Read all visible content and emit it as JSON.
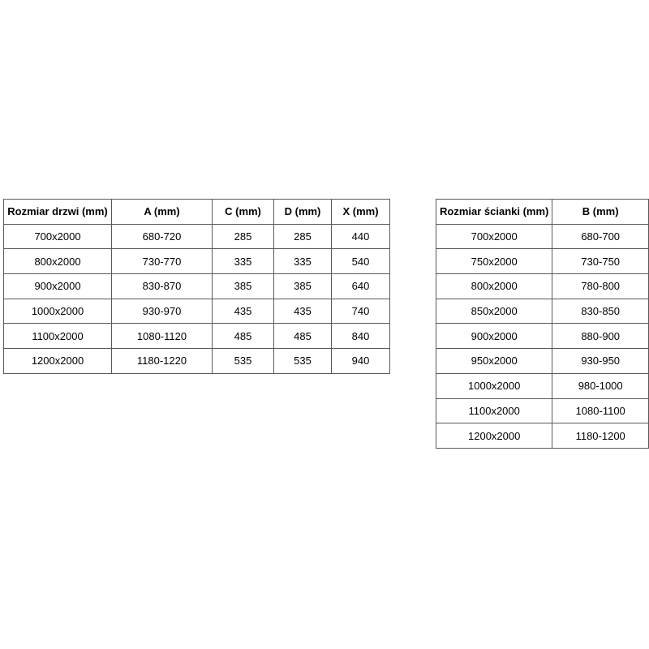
{
  "colors": {
    "background": "#ffffff",
    "table_border": "#595959",
    "text": "#000000"
  },
  "chart_data": [
    {
      "type": "table",
      "name": "door-sizes",
      "title": "",
      "headers": [
        "Rozmiar drzwi (mm)",
        "A (mm)",
        "C (mm)",
        "D (mm)",
        "X (mm)"
      ],
      "rows": [
        [
          "700x2000",
          "680-720",
          "285",
          "285",
          "440"
        ],
        [
          "800x2000",
          "730-770",
          "335",
          "335",
          "540"
        ],
        [
          "900x2000",
          "830-870",
          "385",
          "385",
          "640"
        ],
        [
          "1000x2000",
          "930-970",
          "435",
          "435",
          "740"
        ],
        [
          "1100x2000",
          "1080-1120",
          "485",
          "485",
          "840"
        ],
        [
          "1200x2000",
          "1180-1220",
          "535",
          "535",
          "940"
        ]
      ]
    },
    {
      "type": "table",
      "name": "wall-panel-sizes",
      "title": "",
      "headers": [
        "Rozmiar ścianki (mm)",
        "B (mm)"
      ],
      "rows": [
        [
          "700x2000",
          "680-700"
        ],
        [
          "750x2000",
          "730-750"
        ],
        [
          "800x2000",
          "780-800"
        ],
        [
          "850x2000",
          "830-850"
        ],
        [
          "900x2000",
          "880-900"
        ],
        [
          "950x2000",
          "930-950"
        ],
        [
          "1000x2000",
          "980-1000"
        ],
        [
          "1100x2000",
          "1080-1100"
        ],
        [
          "1200x2000",
          "1180-1200"
        ]
      ]
    }
  ]
}
